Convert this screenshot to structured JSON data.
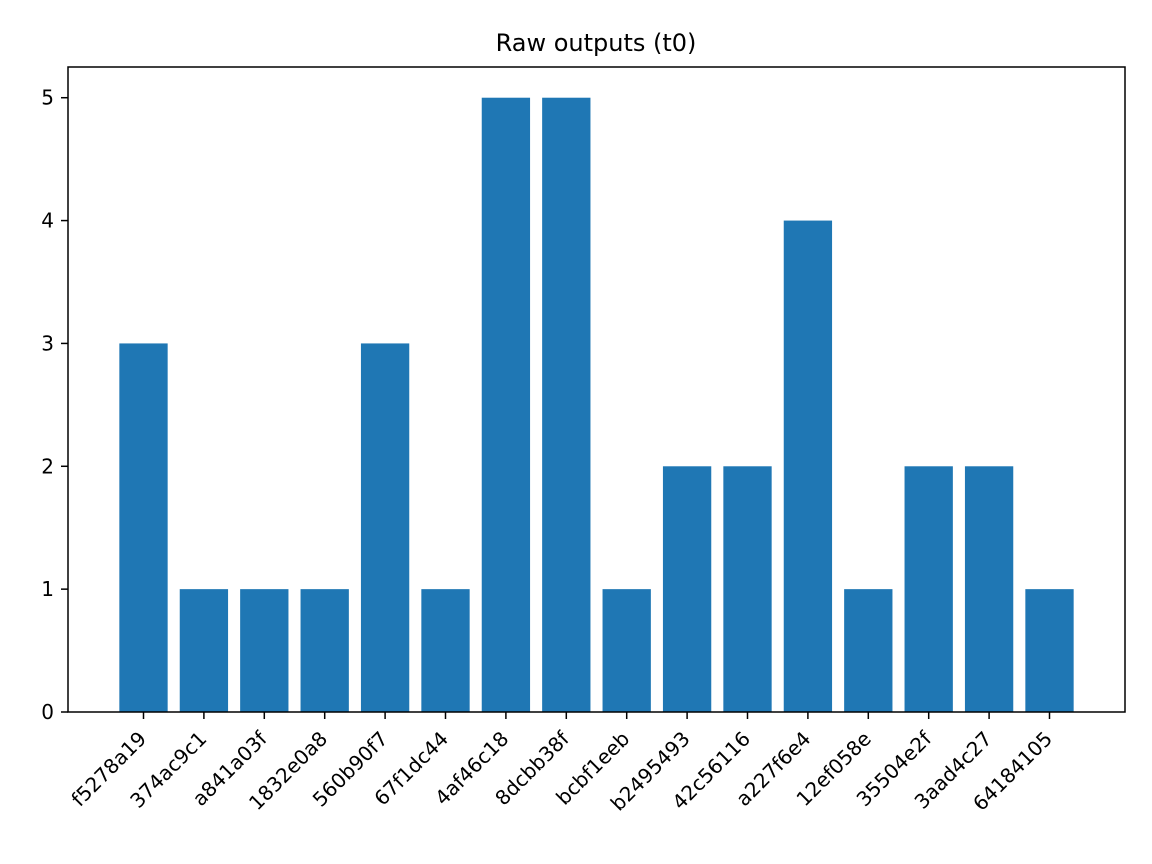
{
  "chart_data": {
    "type": "bar",
    "title": "Raw outputs (t0)",
    "xlabel": "",
    "ylabel": "",
    "categories": [
      "f5278a19",
      "374ac9c1",
      "a841a03f",
      "1832e0a8",
      "560b90f7",
      "67f1dc44",
      "4af46c18",
      "8dcbb38f",
      "bcbf1eeb",
      "b2495493",
      "42c56116",
      "a227f6e4",
      "12ef058e",
      "35504e2f",
      "3aad4c27",
      "64184105"
    ],
    "values": [
      3,
      1,
      1,
      1,
      3,
      1,
      5,
      5,
      1,
      2,
      2,
      4,
      1,
      2,
      2,
      1
    ],
    "ylim": [
      0,
      5.25
    ],
    "yticks": [
      0,
      1,
      2,
      3,
      4,
      5
    ],
    "grid": false,
    "legend": "none",
    "bar_color": "#1f77b4"
  }
}
